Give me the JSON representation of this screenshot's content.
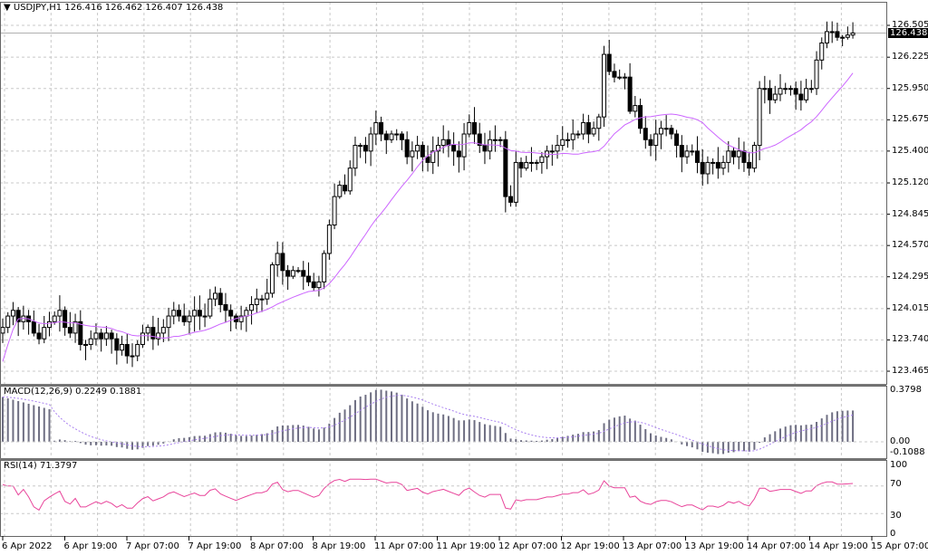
{
  "header": {
    "symbol_label": "▼ USDJPY,H1  126.416 126.462 126.407 126.438"
  },
  "current_price": "126.438",
  "price_axis": {
    "ticks": [
      "126.505",
      "126.225",
      "125.950",
      "125.675",
      "125.400",
      "125.120",
      "124.845",
      "124.570",
      "124.295",
      "124.015",
      "123.740",
      "123.465"
    ]
  },
  "macd": {
    "label": "MACD(12,26,9) 0.2249 0.1881",
    "ticks": [
      "0.3798",
      "0.00",
      "-0.1088"
    ]
  },
  "rsi": {
    "label": "RSI(14) 71.3797",
    "ticks": [
      "100",
      "70",
      "30",
      "0"
    ]
  },
  "time_axis": {
    "labels": [
      "6 Apr 2022",
      "6 Apr 19:00",
      "7 Apr 07:00",
      "7 Apr 19:00",
      "8 Apr 07:00",
      "8 Apr 19:00",
      "11 Apr 07:00",
      "11 Apr 19:00",
      "12 Apr 07:00",
      "12 Apr 19:00",
      "13 Apr 07:00",
      "13 Apr 19:00",
      "14 Apr 07:00",
      "14 Apr 19:00",
      "15 Apr 07:00"
    ]
  },
  "colors": {
    "ma": "#cc66ff",
    "macd_hist": "#6e6e82",
    "macd_signal": "#a980f0",
    "rsi": "#e8449a",
    "grid": "#c8c8c8",
    "candle": "#000000"
  },
  "chart_data": {
    "type": "candlestick",
    "title": "USDJPY,H1",
    "ohlc_last": {
      "open": 126.416,
      "high": 126.462,
      "low": 126.407,
      "close": 126.438
    },
    "ylim": [
      123.465,
      126.505
    ],
    "x_labels": [
      "6 Apr 2022",
      "6 Apr 19:00",
      "7 Apr 07:00",
      "7 Apr 19:00",
      "8 Apr 07:00",
      "8 Apr 19:00",
      "11 Apr 07:00",
      "11 Apr 19:00",
      "12 Apr 07:00",
      "12 Apr 19:00",
      "13 Apr 07:00",
      "13 Apr 19:00",
      "14 Apr 07:00",
      "14 Apr 19:00",
      "15 Apr 07:00"
    ],
    "close_path": [
      123.85,
      123.95,
      124.0,
      123.9,
      123.95,
      123.9,
      123.8,
      123.75,
      123.85,
      123.9,
      123.95,
      124.0,
      123.85,
      123.8,
      123.9,
      123.7,
      123.7,
      123.75,
      123.8,
      123.75,
      123.8,
      123.75,
      123.65,
      123.7,
      123.6,
      123.6,
      123.7,
      123.8,
      123.85,
      123.75,
      123.8,
      123.85,
      123.95,
      124.0,
      123.95,
      123.9,
      123.95,
      124.0,
      123.95,
      123.95,
      124.1,
      124.15,
      124.05,
      124.0,
      123.95,
      123.9,
      123.95,
      124.0,
      124.05,
      124.1,
      124.1,
      124.15,
      124.4,
      124.5,
      124.35,
      124.3,
      124.35,
      124.35,
      124.3,
      124.25,
      124.2,
      124.25,
      124.5,
      124.75,
      125.0,
      125.1,
      125.05,
      125.25,
      125.45,
      125.45,
      125.4,
      125.55,
      125.65,
      125.55,
      125.5,
      125.55,
      125.55,
      125.5,
      125.35,
      125.4,
      125.45,
      125.35,
      125.3,
      125.4,
      125.45,
      125.5,
      125.45,
      125.4,
      125.35,
      125.55,
      125.65,
      125.55,
      125.45,
      125.4,
      125.5,
      125.5,
      125.5,
      125.0,
      124.95,
      125.3,
      125.25,
      125.3,
      125.3,
      125.3,
      125.35,
      125.4,
      125.4,
      125.45,
      125.5,
      125.5,
      125.55,
      125.55,
      125.65,
      125.55,
      125.6,
      125.7,
      126.25,
      126.1,
      126.05,
      126.05,
      126.05,
      125.75,
      125.8,
      125.6,
      125.5,
      125.45,
      125.55,
      125.6,
      125.6,
      125.55,
      125.45,
      125.35,
      125.4,
      125.4,
      125.3,
      125.2,
      125.3,
      125.3,
      125.25,
      125.3,
      125.4,
      125.35,
      125.4,
      125.3,
      125.25,
      125.45,
      125.95,
      125.95,
      125.85,
      125.9,
      125.95,
      125.95,
      125.95,
      125.9,
      125.85,
      125.95,
      125.95,
      126.2,
      126.35,
      126.45,
      126.45,
      126.4,
      126.4,
      126.42,
      126.438
    ],
    "ma_period_hint": "SMA ~20",
    "macd": {
      "params": "12,26,9",
      "main": 0.2249,
      "signal": 0.1881,
      "range": [
        -0.1088,
        0.3798
      ]
    },
    "rsi": {
      "period": 14,
      "value": 71.3797,
      "levels": [
        30,
        70
      ],
      "range": [
        0,
        100
      ]
    }
  }
}
